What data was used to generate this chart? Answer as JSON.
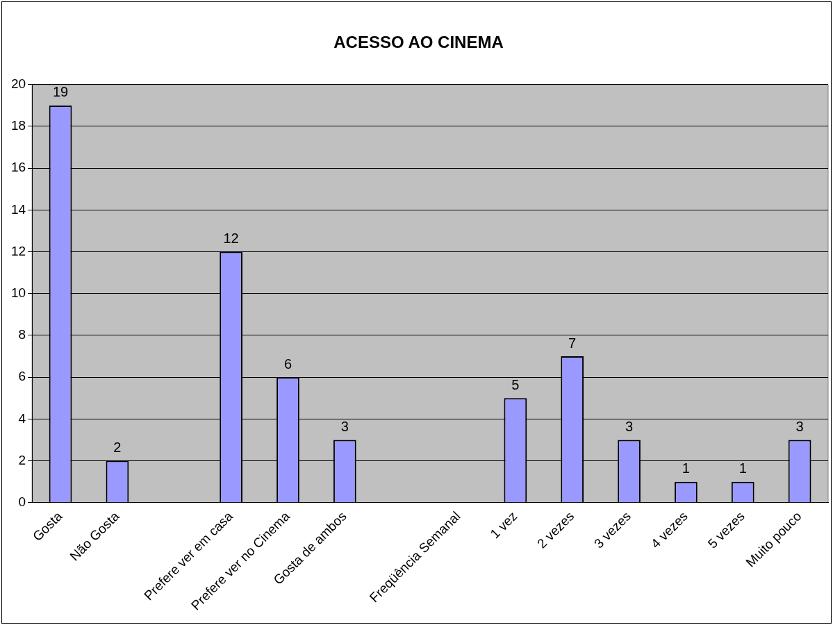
{
  "chart_data": {
    "type": "bar",
    "title": "ACESSO AO CINEMA",
    "categories": [
      "Gosta",
      "Não Gosta",
      null,
      "Prefere ver em casa",
      "Prefere ver no Cinema",
      "Gosta de ambos",
      null,
      "Freqüência Semanal",
      "1 vez",
      "2 vezes",
      "3 vezes",
      "4 vezes",
      "5 vezes",
      "Muito pouco"
    ],
    "values": [
      19,
      2,
      null,
      12,
      6,
      3,
      null,
      null,
      5,
      7,
      3,
      1,
      1,
      3
    ],
    "color": "#9999ff",
    "ylim": [
      0,
      20
    ],
    "yticks": [
      0,
      2,
      4,
      6,
      8,
      10,
      12,
      14,
      16,
      18,
      20
    ],
    "grid": "y",
    "legend": false,
    "data_labels": true
  }
}
